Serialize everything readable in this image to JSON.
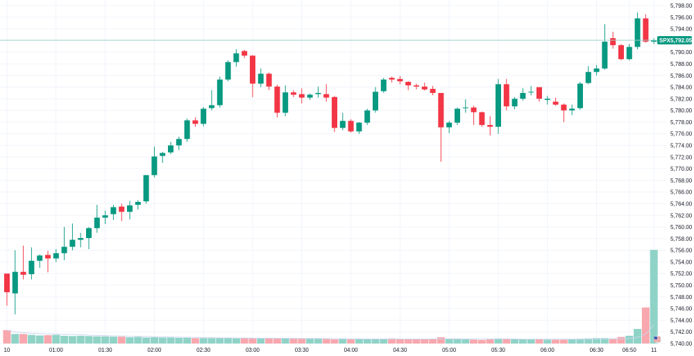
{
  "chart_data": {
    "type": "candlestick",
    "symbol": "SPX",
    "last_price": "5,792.05",
    "last_price_value": 5792.05,
    "y_range": [
      5740,
      5798
    ],
    "y_ticks": [
      "5,798.00",
      "5,796.00",
      "5,794.00",
      "5,792.00",
      "5,790.00",
      "5,788.00",
      "5,786.00",
      "5,784.00",
      "5,782.00",
      "5,780.00",
      "5,778.00",
      "5,776.00",
      "5,774.00",
      "5,772.00",
      "5,770.00",
      "5,768.00",
      "5,766.00",
      "5,764.00",
      "5,762.00",
      "5,760.00",
      "5,758.00",
      "5,756.00",
      "5,754.00",
      "5,752.00",
      "5,750.00",
      "5,748.00",
      "5,746.00",
      "5,744.00",
      "5,742.00",
      "5,740.00"
    ],
    "x_labels": [
      {
        "label": "10",
        "index": 0
      },
      {
        "label": "01:00",
        "index": 6
      },
      {
        "label": "01:30",
        "index": 12
      },
      {
        "label": "02:00",
        "index": 18
      },
      {
        "label": "02:30",
        "index": 24
      },
      {
        "label": "03:00",
        "index": 30
      },
      {
        "label": "03:30",
        "index": 36
      },
      {
        "label": "04:00",
        "index": 42
      },
      {
        "label": "04:30",
        "index": 48
      },
      {
        "label": "05:00",
        "index": 54
      },
      {
        "label": "05:30",
        "index": 60
      },
      {
        "label": "06:00",
        "index": 66
      },
      {
        "label": "06:30",
        "index": 72
      },
      {
        "label": "06:50",
        "index": 76
      },
      {
        "label": "11",
        "index": 79
      }
    ],
    "candles": [
      {
        "o": 5752.0,
        "h": 5752.0,
        "l": 5746.5,
        "c": 5748.8
      },
      {
        "o": 5748.6,
        "h": 5756.0,
        "l": 5745.0,
        "c": 5752.3
      },
      {
        "o": 5752.3,
        "h": 5756.8,
        "l": 5751.0,
        "c": 5751.8
      },
      {
        "o": 5751.9,
        "h": 5756.5,
        "l": 5751.0,
        "c": 5754.2
      },
      {
        "o": 5754.2,
        "h": 5755.3,
        "l": 5753.0,
        "c": 5755.1
      },
      {
        "o": 5755.2,
        "h": 5755.9,
        "l": 5752.2,
        "c": 5754.6
      },
      {
        "o": 5754.6,
        "h": 5756.2,
        "l": 5754.0,
        "c": 5755.5
      },
      {
        "o": 5755.5,
        "h": 5760.0,
        "l": 5754.3,
        "c": 5756.6
      },
      {
        "o": 5756.6,
        "h": 5760.6,
        "l": 5756.0,
        "c": 5757.8
      },
      {
        "o": 5757.8,
        "h": 5759.0,
        "l": 5756.5,
        "c": 5758.1
      },
      {
        "o": 5758.1,
        "h": 5760.0,
        "l": 5756.2,
        "c": 5759.8
      },
      {
        "o": 5759.8,
        "h": 5763.8,
        "l": 5759.0,
        "c": 5761.6
      },
      {
        "o": 5761.6,
        "h": 5762.8,
        "l": 5760.5,
        "c": 5762.0
      },
      {
        "o": 5762.2,
        "h": 5763.8,
        "l": 5761.2,
        "c": 5763.4
      },
      {
        "o": 5763.5,
        "h": 5764.0,
        "l": 5761.0,
        "c": 5762.6
      },
      {
        "o": 5762.6,
        "h": 5764.5,
        "l": 5761.3,
        "c": 5763.7
      },
      {
        "o": 5763.8,
        "h": 5764.6,
        "l": 5763.0,
        "c": 5764.3
      },
      {
        "o": 5764.4,
        "h": 5768.8,
        "l": 5764.0,
        "c": 5768.9
      },
      {
        "o": 5768.9,
        "h": 5773.8,
        "l": 5768.5,
        "c": 5772.1
      },
      {
        "o": 5772.2,
        "h": 5772.9,
        "l": 5771.0,
        "c": 5772.7
      },
      {
        "o": 5772.8,
        "h": 5774.6,
        "l": 5772.5,
        "c": 5774.0
      },
      {
        "o": 5774.0,
        "h": 5775.5,
        "l": 5773.2,
        "c": 5775.1
      },
      {
        "o": 5775.1,
        "h": 5778.6,
        "l": 5774.6,
        "c": 5778.3
      },
      {
        "o": 5778.3,
        "h": 5778.8,
        "l": 5777.2,
        "c": 5777.7
      },
      {
        "o": 5777.7,
        "h": 5780.6,
        "l": 5777.3,
        "c": 5780.3
      },
      {
        "o": 5780.4,
        "h": 5783.5,
        "l": 5780.0,
        "c": 5780.9
      },
      {
        "o": 5780.9,
        "h": 5785.8,
        "l": 5780.5,
        "c": 5785.3
      },
      {
        "o": 5785.3,
        "h": 5788.6,
        "l": 5785.0,
        "c": 5788.3
      },
      {
        "o": 5788.3,
        "h": 5790.5,
        "l": 5787.5,
        "c": 5789.8
      },
      {
        "o": 5790.2,
        "h": 5790.4,
        "l": 5789.0,
        "c": 5789.4
      },
      {
        "o": 5789.4,
        "h": 5789.5,
        "l": 5782.3,
        "c": 5784.6
      },
      {
        "o": 5784.6,
        "h": 5787.2,
        "l": 5784.0,
        "c": 5786.3
      },
      {
        "o": 5786.3,
        "h": 5786.5,
        "l": 5783.5,
        "c": 5784.1
      },
      {
        "o": 5784.1,
        "h": 5784.4,
        "l": 5778.8,
        "c": 5779.6
      },
      {
        "o": 5779.6,
        "h": 5784.3,
        "l": 5779.0,
        "c": 5783.1
      },
      {
        "o": 5783.1,
        "h": 5783.5,
        "l": 5782.3,
        "c": 5782.7
      },
      {
        "o": 5782.8,
        "h": 5783.8,
        "l": 5781.2,
        "c": 5782.2
      },
      {
        "o": 5782.2,
        "h": 5782.9,
        "l": 5781.8,
        "c": 5782.7
      },
      {
        "o": 5782.8,
        "h": 5784.1,
        "l": 5782.2,
        "c": 5783.0
      },
      {
        "o": 5782.8,
        "h": 5784.5,
        "l": 5781.5,
        "c": 5782.2
      },
      {
        "o": 5782.3,
        "h": 5782.5,
        "l": 5776.3,
        "c": 5777.0
      },
      {
        "o": 5777.0,
        "h": 5779.6,
        "l": 5776.6,
        "c": 5778.2
      },
      {
        "o": 5778.2,
        "h": 5778.5,
        "l": 5776.2,
        "c": 5776.4
      },
      {
        "o": 5776.4,
        "h": 5778.0,
        "l": 5776.0,
        "c": 5777.9
      },
      {
        "o": 5777.9,
        "h": 5780.3,
        "l": 5777.5,
        "c": 5780.0
      },
      {
        "o": 5780.0,
        "h": 5784.0,
        "l": 5779.6,
        "c": 5783.2
      },
      {
        "o": 5783.3,
        "h": 5785.6,
        "l": 5783.0,
        "c": 5785.3
      },
      {
        "o": 5785.6,
        "h": 5785.8,
        "l": 5784.8,
        "c": 5785.3
      },
      {
        "o": 5785.4,
        "h": 5785.9,
        "l": 5784.5,
        "c": 5785.0
      },
      {
        "o": 5784.9,
        "h": 5785.0,
        "l": 5783.5,
        "c": 5784.3
      },
      {
        "o": 5784.3,
        "h": 5784.6,
        "l": 5783.6,
        "c": 5784.1
      },
      {
        "o": 5784.1,
        "h": 5784.8,
        "l": 5783.4,
        "c": 5783.6
      },
      {
        "o": 5783.7,
        "h": 5784.2,
        "l": 5782.6,
        "c": 5783.0
      },
      {
        "o": 5783.0,
        "h": 5783.0,
        "l": 5771.2,
        "c": 5777.1
      },
      {
        "o": 5777.1,
        "h": 5778.2,
        "l": 5776.1,
        "c": 5777.9
      },
      {
        "o": 5777.9,
        "h": 5780.5,
        "l": 5777.5,
        "c": 5780.3
      },
      {
        "o": 5780.4,
        "h": 5781.9,
        "l": 5779.6,
        "c": 5780.5
      },
      {
        "o": 5780.5,
        "h": 5780.8,
        "l": 5777.5,
        "c": 5779.7
      },
      {
        "o": 5779.7,
        "h": 5779.8,
        "l": 5777.2,
        "c": 5777.5
      },
      {
        "o": 5777.5,
        "h": 5779.0,
        "l": 5775.7,
        "c": 5777.2
      },
      {
        "o": 5777.2,
        "h": 5785.4,
        "l": 5776.0,
        "c": 5784.5
      },
      {
        "o": 5784.5,
        "h": 5785.4,
        "l": 5780.0,
        "c": 5780.7
      },
      {
        "o": 5780.7,
        "h": 5782.3,
        "l": 5780.2,
        "c": 5782.0
      },
      {
        "o": 5782.0,
        "h": 5783.8,
        "l": 5781.7,
        "c": 5783.0
      },
      {
        "o": 5783.1,
        "h": 5784.2,
        "l": 5782.6,
        "c": 5783.2
      },
      {
        "o": 5784.0,
        "h": 5784.0,
        "l": 5781.5,
        "c": 5782.0
      },
      {
        "o": 5781.8,
        "h": 5782.5,
        "l": 5781.0,
        "c": 5782.0
      },
      {
        "o": 5781.5,
        "h": 5782.2,
        "l": 5780.8,
        "c": 5781.0
      },
      {
        "o": 5781.0,
        "h": 5781.2,
        "l": 5778.0,
        "c": 5780.0
      },
      {
        "o": 5780.0,
        "h": 5781.0,
        "l": 5779.2,
        "c": 5780.3
      },
      {
        "o": 5780.4,
        "h": 5784.9,
        "l": 5780.1,
        "c": 5784.6
      },
      {
        "o": 5784.7,
        "h": 5787.6,
        "l": 5784.5,
        "c": 5786.6
      },
      {
        "o": 5786.6,
        "h": 5787.8,
        "l": 5786.0,
        "c": 5787.2
      },
      {
        "o": 5787.2,
        "h": 5794.8,
        "l": 5787.0,
        "c": 5791.8
      },
      {
        "o": 5792.4,
        "h": 5793.5,
        "l": 5790.6,
        "c": 5791.2
      },
      {
        "o": 5791.2,
        "h": 5791.4,
        "l": 5788.6,
        "c": 5788.8
      },
      {
        "o": 5788.8,
        "h": 5791.4,
        "l": 5788.6,
        "c": 5790.9
      },
      {
        "o": 5790.9,
        "h": 5796.8,
        "l": 5790.5,
        "c": 5795.8
      },
      {
        "o": 5795.8,
        "h": 5796.5,
        "l": 5791.6,
        "c": 5791.8
      },
      {
        "o": 5791.8,
        "h": 5792.4,
        "l": 5791.4,
        "c": 5792.1
      }
    ],
    "volumes": [
      0.45,
      0.32,
      0.32,
      0.29,
      0.27,
      0.28,
      0.29,
      0.26,
      0.25,
      0.26,
      0.25,
      0.24,
      0.24,
      0.23,
      0.23,
      0.21,
      0.22,
      0.2,
      0.21,
      0.2,
      0.2,
      0.19,
      0.19,
      0.18,
      0.18,
      0.18,
      0.18,
      0.18,
      0.17,
      0.18,
      0.17,
      0.17,
      0.18,
      0.17,
      0.17,
      0.16,
      0.16,
      0.17,
      0.16,
      0.15,
      0.14,
      0.15,
      0.14,
      0.15,
      0.14,
      0.15,
      0.16,
      0.17,
      0.15,
      0.14,
      0.14,
      0.15,
      0.16,
      0.21,
      0.15,
      0.15,
      0.14,
      0.13,
      0.12,
      0.15,
      0.17,
      0.16,
      0.15,
      0.15,
      0.15,
      0.14,
      0.13,
      0.13,
      0.13,
      0.14,
      0.16,
      0.17,
      0.18,
      0.18,
      0.17,
      0.22,
      0.26,
      0.49,
      1.21,
      3.15
    ],
    "volume_max": 3.15,
    "colors": {
      "up": "#089981",
      "down": "#f23645",
      "up_volume": "#8fd3c7",
      "down_volume": "#f7a7ad",
      "price_line": "#9fd3ca",
      "grid": "#f0f3fa",
      "axis_text": "#131722",
      "badge": "#089981",
      "volume_ma": "#c9d6ef"
    },
    "grid": true
  }
}
